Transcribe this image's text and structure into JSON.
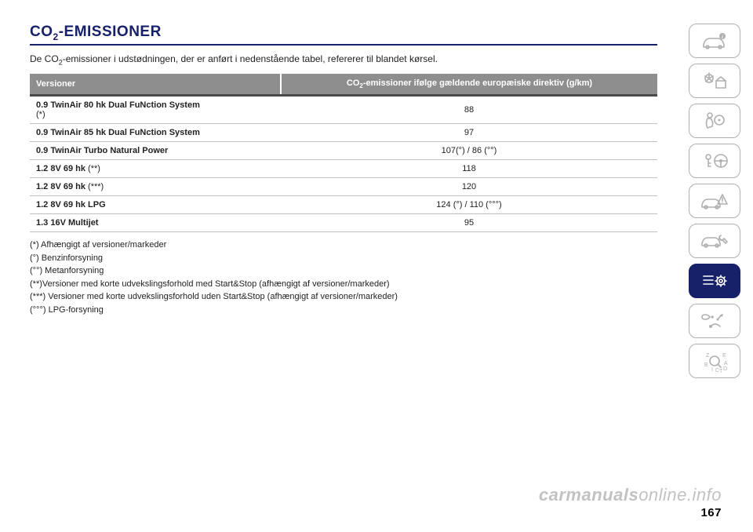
{
  "title_main": "CO",
  "title_sub": "2",
  "title_rest": "-EMISSIONER",
  "intro_a": "De CO",
  "intro_sub": "2",
  "intro_b": "-emissioner i udstødningen, der er anført i nedenstående tabel, refererer til blandet kørsel.",
  "table": {
    "header_versions": "Versioner",
    "header_value_a": "CO",
    "header_value_sub": "2",
    "header_value_b": "-emissioner ifølge gældende europæiske direktiv (g/km)",
    "rows": [
      {
        "version": "0.9 TwinAir 80 hk Dual FuNction System",
        "note": "(*)",
        "note_block": true,
        "value": "88"
      },
      {
        "version": "0.9 TwinAir 85 hk Dual FuNction System",
        "note": "",
        "value": "97"
      },
      {
        "version": "0.9 TwinAir Turbo Natural Power",
        "note": "",
        "value": "107(°) / 86 (°°)"
      },
      {
        "version": "1.2 8V 69 hk",
        "note": " (**)",
        "value": "118"
      },
      {
        "version": "1.2 8V 69 hk",
        "note": " (***)",
        "value": "120"
      },
      {
        "version": "1.2 8V 69 hk LPG",
        "note": "",
        "value": "124 (°) / 110 (°°°)"
      },
      {
        "version": "1.3 16V Multijet",
        "note": "",
        "value": "95"
      }
    ]
  },
  "footnotes": [
    "(*) Afhængigt af versioner/markeder",
    "(°) Benzinforsyning",
    "(°°) Metanforsyning",
    "(**)Versioner med korte udvekslingsforhold med Start&Stop (afhængigt af versioner/markeder)",
    "(***) Versioner med korte udvekslingsforhold uden Start&Stop (afhængigt af versioner/markeder)",
    "(°°°) LPG-forsyning"
  ],
  "page_number": "167",
  "watermark_a": "carmanuals",
  "watermark_b": "online.info",
  "colors": {
    "brand": "#16216a",
    "header_bg": "#8e8e8e",
    "border": "#bfbfbf",
    "icon": "#b0b0b0"
  }
}
